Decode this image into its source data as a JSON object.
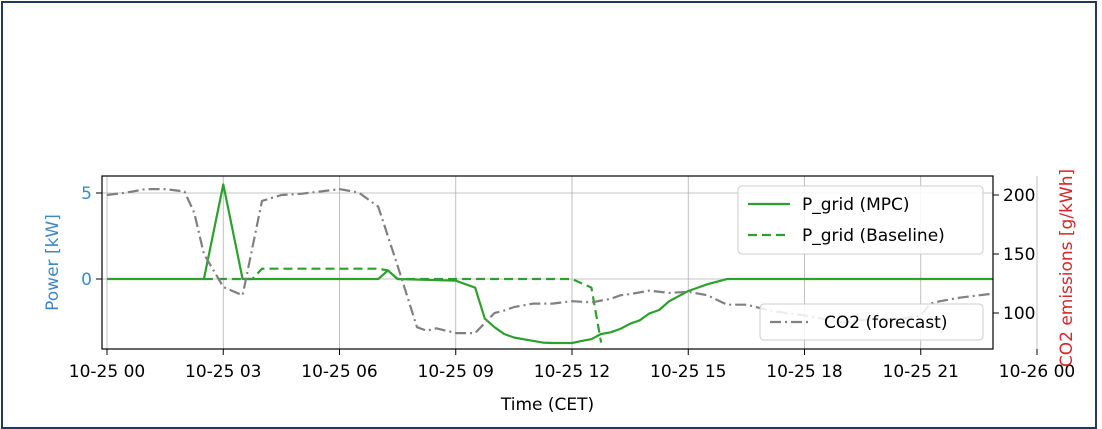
{
  "chart_data": {
    "type": "line",
    "xlabel": "Time (CET)",
    "ylabel_left": "Power [kW]",
    "ylabel_right": "CO2 emissions [g/kWh]",
    "xlim": [
      0,
      24
    ],
    "ylim_left": [
      -3.8,
      5.9
    ],
    "ylim_right": [
      70,
      218
    ],
    "x_ticks": [
      {
        "value": 0,
        "label": "10-25 00"
      },
      {
        "value": 3,
        "label": "10-25 03"
      },
      {
        "value": 6,
        "label": "10-25 06"
      },
      {
        "value": 9,
        "label": "10-25 09"
      },
      {
        "value": 12,
        "label": "10-25 12"
      },
      {
        "value": 15,
        "label": "10-25 15"
      },
      {
        "value": 18,
        "label": "10-25 18"
      },
      {
        "value": 21,
        "label": "10-25 21"
      },
      {
        "value": 24,
        "label": "10-26 00"
      }
    ],
    "y_ticks_left": [
      {
        "value": 0,
        "label": "0"
      },
      {
        "value": 5,
        "label": "5"
      }
    ],
    "y_ticks_right": [
      {
        "value": 100,
        "label": "100"
      },
      {
        "value": 150,
        "label": "150"
      },
      {
        "value": 200,
        "label": "200"
      }
    ],
    "grid": true,
    "colors": {
      "left_axis": "#3f88c5",
      "right_axis": "#d62728",
      "pgrid": "#2ca02c",
      "co2": "#808080"
    },
    "series": [
      {
        "name": "P_grid (MPC)",
        "axis": "left",
        "style": "solid",
        "x": [
          1,
          3.5,
          4.0,
          4.5,
          8.0,
          8.25,
          8.5,
          10.0,
          10.5,
          10.75,
          11.0,
          11.25,
          11.5,
          12.0,
          12.25,
          12.5,
          13.0,
          13.25,
          13.5,
          13.75,
          14.0,
          14.25,
          14.5,
          14.75,
          15.0,
          15.25,
          15.5,
          15.75,
          16.0,
          16.25,
          16.5,
          17.0,
          25.5
        ],
        "y": [
          0,
          0,
          5.5,
          0,
          0,
          0.5,
          0,
          -0.1,
          -0.5,
          -2.3,
          -2.8,
          -3.2,
          -3.4,
          -3.6,
          -3.7,
          -3.72,
          -3.72,
          -3.6,
          -3.5,
          -3.2,
          -3.1,
          -2.9,
          -2.6,
          -2.4,
          -2.0,
          -1.8,
          -1.3,
          -1.0,
          -0.7,
          -0.5,
          -0.3,
          0,
          0
        ]
      },
      {
        "name": "P_grid (Baseline)",
        "axis": "left",
        "style": "dashed",
        "x": [
          3.5,
          4.75,
          5.0,
          8.0,
          8.25,
          8.5,
          13.0,
          13.5,
          13.75
        ],
        "y": [
          0,
          0,
          0.6,
          0.6,
          0.5,
          0,
          0,
          -0.5,
          -3.7
        ]
      },
      {
        "name": "CO2 (forecast)",
        "axis": "right",
        "style": "dashdot",
        "x": [
          1,
          1.5,
          2.0,
          2.5,
          3.0,
          3.25,
          3.5,
          4.0,
          4.5,
          5.0,
          5.5,
          6.0,
          6.5,
          7.0,
          7.5,
          8.0,
          8.5,
          9.0,
          9.25,
          9.5,
          10.0,
          10.5,
          11.0,
          11.25,
          11.5,
          12.0,
          12.5,
          13.0,
          13.5,
          14.0,
          14.25,
          14.5,
          15.0,
          15.5,
          16.0,
          16.5,
          17.0,
          17.5,
          18.0,
          18.5,
          19.0,
          19.5,
          20.0,
          20.5,
          21.0,
          21.5,
          22.0,
          22.25,
          22.5,
          23.0,
          23.5,
          24.0,
          24.5,
          24.75,
          25.0,
          25.25,
          25.5
        ],
        "y": [
          200,
          202,
          205,
          205,
          203,
          185,
          150,
          122,
          115,
          195,
          200,
          201,
          203,
          205,
          202,
          190,
          140,
          88,
          85,
          87,
          83,
          83,
          100,
          102,
          105,
          108,
          108,
          110,
          109,
          112,
          115,
          116,
          119,
          117,
          118,
          115,
          107,
          107,
          103,
          100,
          98,
          95,
          92,
          94,
          95,
          95,
          98,
          108,
          110,
          113,
          115,
          117,
          114,
          118,
          180,
          185,
          187
        ]
      }
    ],
    "legend": [
      {
        "label": "P_grid (MPC)",
        "placement": "upper-right"
      },
      {
        "label": "P_grid (Baseline)",
        "placement": "upper-right"
      },
      {
        "label": "CO2 (forecast)",
        "placement": "lower-right"
      }
    ]
  }
}
